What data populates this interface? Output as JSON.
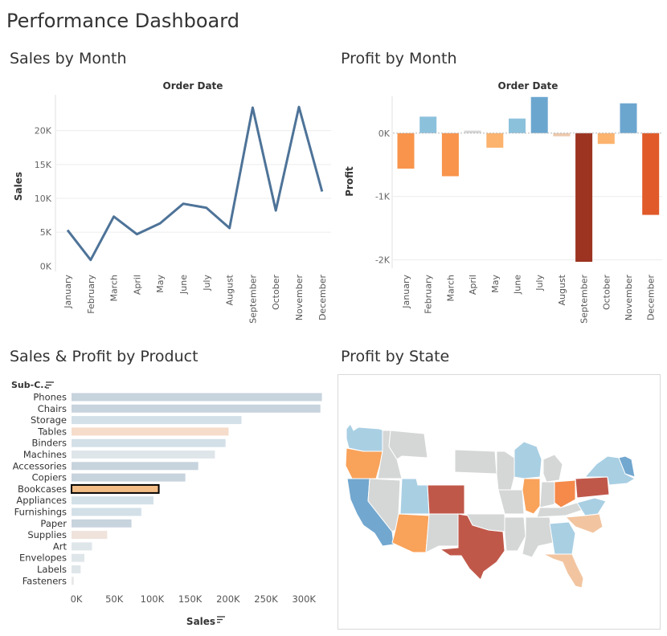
{
  "dashboard": {
    "title": "Performance Dashboard"
  },
  "colors": {
    "line": "#4e7398",
    "bar_fill_blue": "#cfdae4",
    "bar_highlight": "#f2bd86",
    "grid": "#ececec"
  },
  "chart_data": [
    {
      "id": "sales-by-month",
      "type": "line",
      "title": "Sales by Month",
      "header": "Order Date",
      "ylabel": "Sales",
      "categories": [
        "January",
        "February",
        "March",
        "April",
        "May",
        "June",
        "July",
        "August",
        "September",
        "October",
        "November",
        "December"
      ],
      "values": [
        5300,
        900,
        7300,
        4700,
        6300,
        9200,
        8600,
        5600,
        23400,
        8200,
        23500,
        11000
      ],
      "yticks": [
        0,
        5000,
        10000,
        15000,
        20000
      ],
      "ytick_labels": [
        "0K",
        "5K",
        "10K",
        "15K",
        "20K"
      ],
      "ylim": [
        -800,
        25300
      ],
      "grid": true
    },
    {
      "id": "profit-by-month",
      "type": "bar",
      "title": "Profit by Month",
      "header": "Order Date",
      "ylabel": "Profit",
      "categories": [
        "January",
        "February",
        "March",
        "April",
        "May",
        "June",
        "July",
        "August",
        "September",
        "October",
        "November",
        "December"
      ],
      "values": [
        -560,
        260,
        -680,
        40,
        -230,
        230,
        570,
        -50,
        -2030,
        -170,
        470,
        -1290
      ],
      "colors": [
        "#f8944c",
        "#8cc1dc",
        "#f8944c",
        "#d6d6d6",
        "#fbb36e",
        "#8cc1dc",
        "#6ba6cf",
        "#ecc9ad",
        "#9c3421",
        "#fbb36e",
        "#6ba6cf",
        "#e05a2a"
      ],
      "yticks": [
        0,
        -1000,
        -2000
      ],
      "ytick_labels": [
        "0K",
        "-1K",
        "-2K"
      ],
      "ylim": [
        -2030,
        580
      ],
      "grid": true
    },
    {
      "id": "sales-profit-by-product",
      "type": "bar",
      "orientation": "horizontal",
      "title": "Sales & Profit by Product",
      "row_header": "Sub-C..",
      "xlabel": "Sales",
      "categories": [
        "Phones",
        "Chairs",
        "Storage",
        "Tables",
        "Binders",
        "Machines",
        "Accessories",
        "Copiers",
        "Bookcases",
        "Appliances",
        "Furnishings",
        "Paper",
        "Supplies",
        "Art",
        "Envelopes",
        "Labels",
        "Fasteners"
      ],
      "values": [
        330000,
        328000,
        224000,
        207000,
        203000,
        189000,
        167000,
        150000,
        115000,
        108000,
        92000,
        79000,
        47000,
        27000,
        17000,
        12000,
        3000
      ],
      "colors": [
        "#c7d3dd",
        "#c7d3dd",
        "#d3e0e8",
        "#f5dccb",
        "#d3e0e8",
        "#dfe6ea",
        "#c7d3dd",
        "#c7d3dd",
        "#f2bd86",
        "#d3e0e8",
        "#d3e0e8",
        "#c7d3dd",
        "#efe3dc",
        "#dfe6ea",
        "#dfe6ea",
        "#dfe6ea",
        "#e8e8e8"
      ],
      "highlighted": "Bookcases",
      "xticks": [
        0,
        50000,
        100000,
        150000,
        200000,
        250000,
        300000
      ],
      "xtick_labels": [
        "0K",
        "50K",
        "100K",
        "150K",
        "200K",
        "250K",
        "300K"
      ],
      "xlim": [
        0,
        340000
      ]
    }
  ],
  "map": {
    "title": "Profit by State",
    "colors": {
      "light_blue": "#a9cfe3",
      "mid_blue": "#72a7cf",
      "light_orange": "#f9a25a",
      "dark_orange": "#cc5a40",
      "brown": "#c0584a",
      "pale_orange": "#f2c5a0",
      "gray": "#d4d7d6",
      "orange": "#f58a4b"
    }
  }
}
